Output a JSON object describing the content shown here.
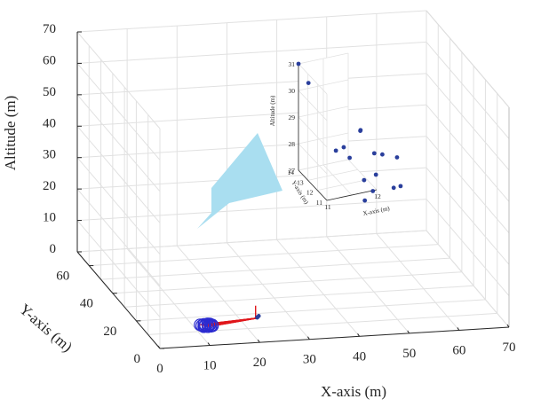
{
  "chart_data": [
    {
      "type": "scatter3d",
      "title": "",
      "xlabel": "X-axis (m)",
      "ylabel": "Y-axis (m)",
      "zlabel": "Altitude (m)",
      "xlim": [
        0,
        70
      ],
      "ylim": [
        0,
        70
      ],
      "zlim": [
        0,
        70
      ],
      "xticks": [
        "0",
        "10",
        "20",
        "30",
        "40",
        "50",
        "60",
        "70"
      ],
      "yticks": [
        "0",
        "20",
        "40",
        "60"
      ],
      "zticks": [
        "0",
        "10",
        "20",
        "30",
        "40",
        "50",
        "60",
        "70"
      ],
      "grid": true,
      "series": [
        {
          "marker": "open-circle",
          "color": "#2b2bd0",
          "points": [
            [
              11.2,
              11.8,
              1
            ],
            [
              11.6,
              11.4,
              1
            ],
            [
              12.0,
              12.2,
              1
            ],
            [
              12.4,
              11.6,
              1
            ],
            [
              12.9,
              12.0,
              1
            ],
            [
              11.8,
              12.6,
              1
            ],
            [
              12.6,
              12.8,
              1
            ],
            [
              13.2,
              11.2,
              1
            ],
            [
              11.4,
              11.0,
              1
            ],
            [
              12.2,
              10.8,
              1
            ],
            [
              13.0,
              12.6,
              1
            ],
            [
              11.0,
              12.4,
              1
            ],
            [
              12.8,
              11.0,
              1
            ],
            [
              11.9,
              11.8,
              1
            ],
            [
              13.3,
              11.8,
              1
            ]
          ]
        },
        {
          "marker": "line",
          "color": "#e0161b",
          "description_role": "trajectories",
          "endpoint": [
            22.5,
            12.5,
            2
          ]
        },
        {
          "marker": "filled-circle",
          "color": "#2a3f9c",
          "points": [
            [
              22.4,
              12.2,
              2.3
            ],
            [
              22.8,
              12.6,
              2.6
            ],
            [
              22.6,
              12.9,
              2.1
            ]
          ]
        }
      ]
    },
    {
      "type": "scatter3d",
      "title": "",
      "xlabel": "X-axis (m)",
      "ylabel": "Y-axis (m)",
      "zlabel": "Altitude (m)",
      "xlim": [
        11,
        12
      ],
      "ylim": [
        11,
        14
      ],
      "zlim": [
        27,
        31
      ],
      "xticks": [
        "11",
        "12"
      ],
      "yticks": [
        "11",
        "12",
        "13",
        "14"
      ],
      "zticks": [
        "27",
        "28",
        "29",
        "30",
        "31"
      ],
      "grid": true,
      "series": [
        {
          "marker": "filled-circle",
          "color": "#2a3f9c",
          "points": [
            [
              11.0,
              14.0,
              31.0
            ],
            [
              11.2,
              14.0,
              30.2
            ],
            [
              11.9,
              12.2,
              28.8
            ],
            [
              12.0,
              12.7,
              28.6
            ],
            [
              11.7,
              12.9,
              28.0
            ],
            [
              11.6,
              13.2,
              27.8
            ],
            [
              11.8,
              12.8,
              27.6
            ],
            [
              12.2,
              12.3,
              27.8
            ],
            [
              12.4,
              12.5,
              27.6
            ],
            [
              11.9,
              11.8,
              27.1
            ],
            [
              12.6,
              12.0,
              27.6
            ],
            [
              12.1,
              11.6,
              27.3
            ],
            [
              12.0,
              11.4,
              26.8
            ],
            [
              12.4,
              11.3,
              26.8
            ],
            [
              11.8,
              11.2,
              26.6
            ],
            [
              12.5,
              11.1,
              26.9
            ]
          ]
        }
      ]
    }
  ],
  "colors": {
    "zoom_callout": "#a9def0",
    "grid": "#e1e1e1",
    "axis": "#262626"
  }
}
